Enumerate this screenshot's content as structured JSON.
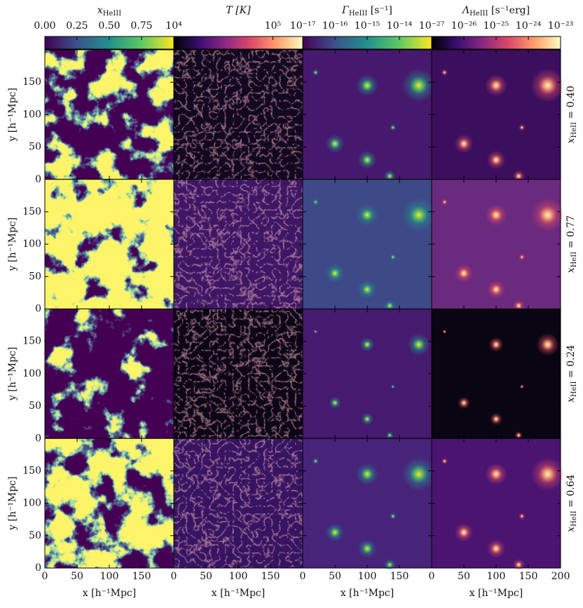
{
  "chart_data": {
    "type": "image-grid",
    "xlim": [
      0,
      200
    ],
    "ylim": [
      0,
      200
    ],
    "xticks": [
      0,
      50,
      100,
      150,
      200
    ],
    "yticks": [
      0,
      50,
      100,
      150
    ],
    "xlabel": "x [h⁻¹Mpc]",
    "ylabel": "y [h⁻¹Mpc]",
    "colorbars": [
      {
        "label": {
          "text": "x",
          "sub": "HeIII"
        },
        "scale": "linear",
        "lim": [
          0,
          1
        ],
        "ticks": [
          {
            "value": 0,
            "label": "0.00"
          },
          {
            "value": 0.25,
            "label": "0.25"
          },
          {
            "value": 0.5,
            "label": "0.50"
          },
          {
            "value": 0.75,
            "label": "0.75"
          }
        ],
        "colors": [
          "#440154",
          "#3b528b",
          "#21918c",
          "#5ec962",
          "#fde725"
        ]
      },
      {
        "label": {
          "text": "T [K]"
        },
        "scale": "log",
        "lim": [
          10000,
          200000
        ],
        "ticks": [
          {
            "value": 10000,
            "label": "10⁴"
          },
          {
            "value": 100000,
            "label": "10⁵"
          }
        ],
        "colors": [
          "#000004",
          "#3b0f70",
          "#8c2981",
          "#de4968",
          "#fe9f6d",
          "#fcfdbf"
        ]
      },
      {
        "label": {
          "text": "Γ",
          "sub": "HeIII",
          "after": " [s⁻¹]"
        },
        "scale": "log",
        "lim": [
          1e-17,
          1e-13
        ],
        "ticks": [
          {
            "value": 1e-17,
            "label": "10⁻¹⁷"
          },
          {
            "value": 1e-16,
            "label": "10⁻¹⁶"
          },
          {
            "value": 1e-15,
            "label": "10⁻¹⁵"
          },
          {
            "value": 1e-14,
            "label": "10⁻¹⁴"
          }
        ],
        "colors": [
          "#440154",
          "#3b528b",
          "#21918c",
          "#5ec962",
          "#fde725"
        ]
      },
      {
        "label": {
          "text": "Λ",
          "sub": "HeIII",
          "after": " [s⁻¹erg]"
        },
        "scale": "log",
        "lim": [
          1e-27,
          1e-23
        ],
        "ticks": [
          {
            "value": 1e-27,
            "label": "10⁻²⁷"
          },
          {
            "value": 1e-26,
            "label": "10⁻²⁶"
          },
          {
            "value": 1e-25,
            "label": "10⁻²⁵"
          },
          {
            "value": 1e-24,
            "label": "10⁻²⁴"
          },
          {
            "value": 1e-23,
            "label": "10⁻²³"
          }
        ],
        "colors": [
          "#000004",
          "#3b0f70",
          "#8c2981",
          "#de4968",
          "#fe9f6d",
          "#fcfdbf"
        ]
      }
    ],
    "rows": [
      {
        "text": "x",
        "sub": "HeII",
        "after": " = 0.40"
      },
      {
        "text": "x",
        "sub": "HeII",
        "after": " = 0.77"
      },
      {
        "text": "x",
        "sub": "HeII",
        "after": " = 0.24"
      },
      {
        "text": "x",
        "sub": "HeII",
        "after": " = 0.64"
      }
    ]
  }
}
